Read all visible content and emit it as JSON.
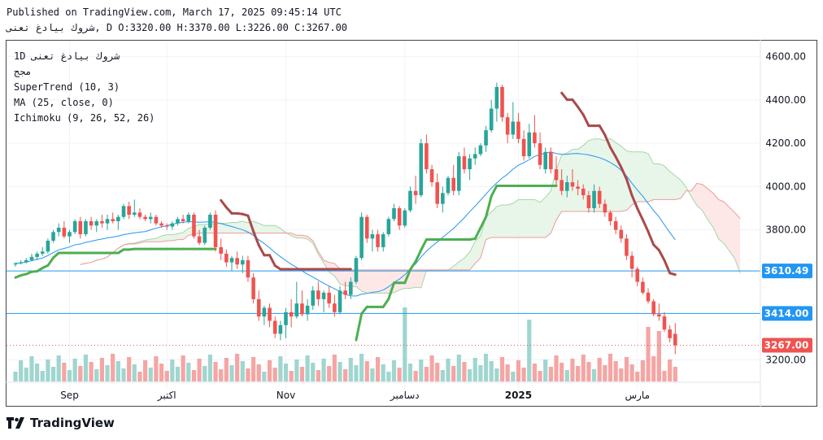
{
  "header": {
    "published": "Published on TradingView.com, March 17, 2025 09:45:14 UTC",
    "symbol_line": "شروك بيادغ تعنى, D O:3320.00 H:3370.00 L:3226.00 C:3267.00"
  },
  "legend": {
    "symbol": "1D شروك بيادغ تعنى",
    "sub": "مجج",
    "supertrend": "SuperTrend (10, 3)",
    "ma": "MA (25, close, 0)",
    "ichimoku": "Ichimoku (9, 26, 52, 26)"
  },
  "brand": "TradingView",
  "colors": {
    "up": "#26a69a",
    "down": "#ef5350",
    "supertrend_up": "#4caf50",
    "supertrend_down": "#a94a4a",
    "ma": "#2196f3",
    "cloud_green": "#e8f5e9",
    "cloud_red": "#fde7e7",
    "hline": "#2196f3",
    "price_label": "#ef5350"
  },
  "chart_data": {
    "type": "candlestick",
    "y_ticks": [
      "4600.00",
      "4400.00",
      "4200.00",
      "4000.00",
      "3800.00",
      "3200.00"
    ],
    "ylim": [
      3100,
      4640
    ],
    "x_ticks": [
      "Sep",
      "اكتبر",
      "Nov",
      "دسامبر",
      "2025",
      "مارس"
    ],
    "price_labels": [
      {
        "value": 3610.49,
        "label": "3610.49",
        "kind": "hline"
      },
      {
        "value": 3414.0,
        "label": "3414.00",
        "kind": "hline"
      },
      {
        "value": 3267.0,
        "label": "3267.00",
        "kind": "last"
      }
    ],
    "candles": [
      [
        3640,
        3650,
        3630,
        3645
      ],
      [
        3645,
        3660,
        3640,
        3650
      ],
      [
        3650,
        3670,
        3645,
        3660
      ],
      [
        3660,
        3690,
        3655,
        3675
      ],
      [
        3675,
        3700,
        3660,
        3690
      ],
      [
        3690,
        3720,
        3680,
        3700
      ],
      [
        3700,
        3760,
        3690,
        3750
      ],
      [
        3750,
        3800,
        3740,
        3790
      ],
      [
        3790,
        3830,
        3770,
        3810
      ],
      [
        3810,
        3840,
        3760,
        3770
      ],
      [
        3770,
        3800,
        3740,
        3790
      ],
      [
        3790,
        3850,
        3780,
        3840
      ],
      [
        3840,
        3860,
        3760,
        3780
      ],
      [
        3780,
        3850,
        3770,
        3840
      ],
      [
        3840,
        3860,
        3800,
        3820
      ],
      [
        3820,
        3850,
        3790,
        3840
      ],
      [
        3840,
        3870,
        3810,
        3830
      ],
      [
        3830,
        3870,
        3800,
        3850
      ],
      [
        3850,
        3880,
        3830,
        3840
      ],
      [
        3840,
        3870,
        3800,
        3860
      ],
      [
        3860,
        3920,
        3850,
        3910
      ],
      [
        3910,
        3930,
        3850,
        3870
      ],
      [
        3870,
        3940,
        3860,
        3880
      ],
      [
        3880,
        3900,
        3850,
        3860
      ],
      [
        3860,
        3870,
        3840,
        3850
      ],
      [
        3850,
        3880,
        3830,
        3860
      ],
      [
        3860,
        3870,
        3820,
        3830
      ],
      [
        3830,
        3840,
        3810,
        3820
      ],
      [
        3820,
        3830,
        3800,
        3815
      ],
      [
        3815,
        3840,
        3800,
        3830
      ],
      [
        3830,
        3860,
        3820,
        3850
      ],
      [
        3850,
        3870,
        3830,
        3840
      ],
      [
        3840,
        3880,
        3830,
        3870
      ],
      [
        3870,
        3880,
        3760,
        3770
      ],
      [
        3770,
        3800,
        3730,
        3740
      ],
      [
        3740,
        3820,
        3730,
        3810
      ],
      [
        3810,
        3880,
        3800,
        3870
      ],
      [
        3870,
        3890,
        3700,
        3720
      ],
      [
        3720,
        3760,
        3660,
        3690
      ],
      [
        3690,
        3710,
        3630,
        3650
      ],
      [
        3650,
        3680,
        3610,
        3670
      ],
      [
        3670,
        3700,
        3620,
        3640
      ],
      [
        3640,
        3680,
        3600,
        3660
      ],
      [
        3660,
        3680,
        3560,
        3580
      ],
      [
        3580,
        3600,
        3460,
        3480
      ],
      [
        3480,
        3520,
        3380,
        3400
      ],
      [
        3400,
        3450,
        3360,
        3440
      ],
      [
        3440,
        3460,
        3350,
        3380
      ],
      [
        3380,
        3400,
        3300,
        3320
      ],
      [
        3320,
        3380,
        3290,
        3360
      ],
      [
        3360,
        3440,
        3300,
        3420
      ],
      [
        3420,
        3480,
        3350,
        3400
      ],
      [
        3400,
        3560,
        3390,
        3460
      ],
      [
        3460,
        3520,
        3400,
        3410
      ],
      [
        3410,
        3480,
        3380,
        3450
      ],
      [
        3450,
        3540,
        3430,
        3520
      ],
      [
        3520,
        3560,
        3450,
        3480
      ],
      [
        3480,
        3520,
        3420,
        3510
      ],
      [
        3510,
        3540,
        3440,
        3460
      ],
      [
        3460,
        3500,
        3400,
        3420
      ],
      [
        3420,
        3540,
        3410,
        3520
      ],
      [
        3520,
        3560,
        3480,
        3500
      ],
      [
        3500,
        3580,
        3480,
        3560
      ],
      [
        3560,
        3680,
        3550,
        3670
      ],
      [
        3670,
        3880,
        3660,
        3860
      ],
      [
        3860,
        3870,
        3740,
        3760
      ],
      [
        3760,
        3800,
        3700,
        3780
      ],
      [
        3780,
        3800,
        3700,
        3720
      ],
      [
        3720,
        3790,
        3700,
        3780
      ],
      [
        3780,
        3860,
        3770,
        3850
      ],
      [
        3850,
        3920,
        3840,
        3900
      ],
      [
        3900,
        3910,
        3800,
        3820
      ],
      [
        3820,
        3900,
        3810,
        3890
      ],
      [
        3890,
        4000,
        3880,
        3980
      ],
      [
        3980,
        4050,
        3920,
        3960
      ],
      [
        3960,
        4220,
        3950,
        4200
      ],
      [
        4200,
        4240,
        4060,
        4080
      ],
      [
        4080,
        4100,
        4000,
        4020
      ],
      [
        4020,
        4060,
        3900,
        3920
      ],
      [
        3920,
        4000,
        3880,
        3970
      ],
      [
        3970,
        4050,
        3960,
        4040
      ],
      [
        4040,
        4100,
        3960,
        3980
      ],
      [
        3980,
        4160,
        3960,
        4140
      ],
      [
        4140,
        4180,
        4060,
        4080
      ],
      [
        4080,
        4150,
        4030,
        4130
      ],
      [
        4130,
        4180,
        4100,
        4150
      ],
      [
        4150,
        4200,
        4140,
        4190
      ],
      [
        4190,
        4280,
        4160,
        4260
      ],
      [
        4260,
        4400,
        4250,
        4360
      ],
      [
        4360,
        4480,
        4300,
        4460
      ],
      [
        4460,
        4470,
        4300,
        4320
      ],
      [
        4320,
        4340,
        4200,
        4240
      ],
      [
        4240,
        4390,
        4220,
        4300
      ],
      [
        4300,
        4340,
        4200,
        4220
      ],
      [
        4220,
        4260,
        4120,
        4140
      ],
      [
        4140,
        4290,
        4130,
        4250
      ],
      [
        4250,
        4330,
        4180,
        4200
      ],
      [
        4200,
        4250,
        4080,
        4100
      ],
      [
        4080,
        4180,
        4060,
        4160
      ],
      [
        4160,
        4180,
        4060,
        4080
      ],
      [
        4080,
        4140,
        4000,
        4030
      ],
      [
        4030,
        4080,
        3960,
        3980
      ],
      [
        3980,
        4050,
        3950,
        4020
      ],
      [
        4020,
        4080,
        3980,
        4000
      ],
      [
        4000,
        4030,
        3960,
        3990
      ],
      [
        3990,
        4010,
        3940,
        3960
      ],
      [
        3960,
        3980,
        3880,
        3900
      ],
      [
        3900,
        4010,
        3880,
        3980
      ],
      [
        3980,
        4000,
        3900,
        3920
      ],
      [
        3920,
        3940,
        3860,
        3880
      ],
      [
        3880,
        3890,
        3820,
        3840
      ],
      [
        3840,
        3860,
        3780,
        3800
      ],
      [
        3800,
        3820,
        3740,
        3760
      ],
      [
        3760,
        3780,
        3660,
        3680
      ],
      [
        3680,
        3700,
        3580,
        3620
      ],
      [
        3620,
        3630,
        3540,
        3560
      ],
      [
        3560,
        3580,
        3500,
        3510
      ],
      [
        3510,
        3530,
        3460,
        3470
      ],
      [
        3470,
        3480,
        3400,
        3410
      ],
      [
        3410,
        3460,
        3380,
        3400
      ],
      [
        3400,
        3420,
        3330,
        3340
      ],
      [
        3340,
        3360,
        3280,
        3300
      ],
      [
        3320,
        3370,
        3226,
        3267
      ]
    ]
  }
}
